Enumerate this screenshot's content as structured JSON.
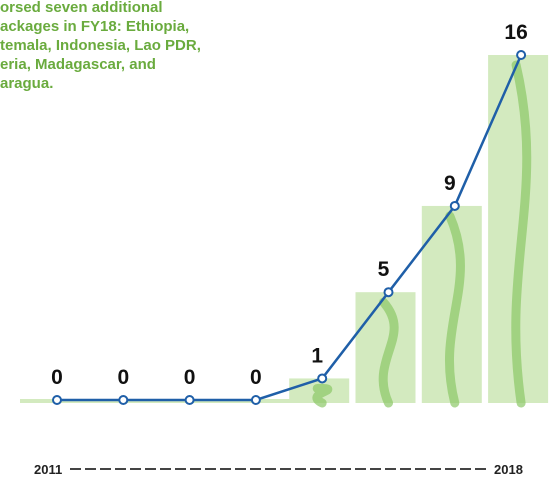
{
  "chart_data": {
    "type": "line",
    "annotation": [
      "orsed seven additional",
      "ackages in FY18: Ethiopia,",
      "temala, Indonesia, Lao PDR,",
      "eria, Madagascar, and",
      "aragua."
    ],
    "categories": [
      "2011",
      null,
      null,
      null,
      null,
      null,
      null,
      "2018"
    ],
    "values": [
      0,
      0,
      0,
      0,
      1,
      5,
      9,
      16
    ],
    "color": "#1f5fa8",
    "bar_color": "#d3eabf",
    "ylim": [
      0,
      16
    ]
  }
}
